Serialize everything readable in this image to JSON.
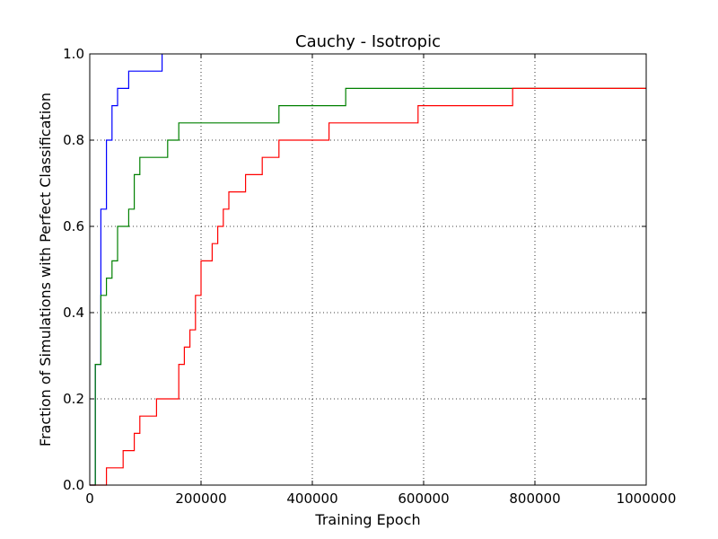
{
  "chart_data": {
    "type": "line",
    "title": "Cauchy - Isotropic",
    "xlabel": "Training Epoch",
    "ylabel": "Fraction of Simulations with Perfect Classification",
    "xlim": [
      0,
      1000000
    ],
    "ylim": [
      0,
      1.0
    ],
    "xticks": [
      0,
      200000,
      400000,
      600000,
      800000,
      1000000
    ],
    "xtick_labels": [
      "0",
      "200000",
      "400000",
      "600000",
      "800000",
      "1000000"
    ],
    "yticks": [
      0,
      0.2,
      0.4,
      0.6,
      0.8,
      1.0
    ],
    "ytick_labels": [
      "0.0",
      "0.2",
      "0.4",
      "0.6",
      "0.8",
      "1.0"
    ],
    "grid": true,
    "step": true,
    "series": [
      {
        "color": "#0000ff",
        "points": [
          [
            0,
            0
          ],
          [
            10000,
            0
          ],
          [
            10000,
            0.28
          ],
          [
            20000,
            0.28
          ],
          [
            20000,
            0.44
          ],
          [
            20000,
            0.64
          ],
          [
            30000,
            0.64
          ],
          [
            30000,
            0.8
          ],
          [
            40000,
            0.8
          ],
          [
            40000,
            0.88
          ],
          [
            50000,
            0.88
          ],
          [
            50000,
            0.92
          ],
          [
            70000,
            0.92
          ],
          [
            70000,
            0.96
          ],
          [
            130000,
            0.96
          ],
          [
            130000,
            1.0
          ]
        ]
      },
      {
        "color": "#008000",
        "points": [
          [
            0,
            0
          ],
          [
            10000,
            0
          ],
          [
            10000,
            0.28
          ],
          [
            20000,
            0.28
          ],
          [
            20000,
            0.44
          ],
          [
            30000,
            0.44
          ],
          [
            30000,
            0.48
          ],
          [
            40000,
            0.48
          ],
          [
            40000,
            0.52
          ],
          [
            50000,
            0.52
          ],
          [
            50000,
            0.6
          ],
          [
            70000,
            0.6
          ],
          [
            70000,
            0.64
          ],
          [
            80000,
            0.64
          ],
          [
            80000,
            0.72
          ],
          [
            90000,
            0.72
          ],
          [
            90000,
            0.76
          ],
          [
            140000,
            0.76
          ],
          [
            140000,
            0.8
          ],
          [
            160000,
            0.8
          ],
          [
            160000,
            0.84
          ],
          [
            340000,
            0.84
          ],
          [
            340000,
            0.88
          ],
          [
            460000,
            0.88
          ],
          [
            460000,
            0.92
          ],
          [
            1000000,
            0.92
          ]
        ]
      },
      {
        "color": "#ff0000",
        "points": [
          [
            0,
            0
          ],
          [
            30000,
            0
          ],
          [
            30000,
            0.04
          ],
          [
            60000,
            0.04
          ],
          [
            60000,
            0.08
          ],
          [
            80000,
            0.08
          ],
          [
            80000,
            0.12
          ],
          [
            90000,
            0.12
          ],
          [
            90000,
            0.16
          ],
          [
            120000,
            0.16
          ],
          [
            120000,
            0.2
          ],
          [
            160000,
            0.2
          ],
          [
            160000,
            0.28
          ],
          [
            170000,
            0.28
          ],
          [
            170000,
            0.32
          ],
          [
            180000,
            0.32
          ],
          [
            180000,
            0.36
          ],
          [
            190000,
            0.36
          ],
          [
            190000,
            0.44
          ],
          [
            200000,
            0.44
          ],
          [
            200000,
            0.52
          ],
          [
            220000,
            0.52
          ],
          [
            220000,
            0.56
          ],
          [
            230000,
            0.56
          ],
          [
            230000,
            0.6
          ],
          [
            240000,
            0.6
          ],
          [
            240000,
            0.64
          ],
          [
            250000,
            0.64
          ],
          [
            250000,
            0.68
          ],
          [
            280000,
            0.68
          ],
          [
            280000,
            0.72
          ],
          [
            310000,
            0.72
          ],
          [
            310000,
            0.76
          ],
          [
            340000,
            0.76
          ],
          [
            340000,
            0.8
          ],
          [
            430000,
            0.8
          ],
          [
            430000,
            0.84
          ],
          [
            590000,
            0.84
          ],
          [
            590000,
            0.88
          ],
          [
            760000,
            0.88
          ],
          [
            760000,
            0.92
          ],
          [
            1000000,
            0.92
          ]
        ]
      }
    ]
  }
}
